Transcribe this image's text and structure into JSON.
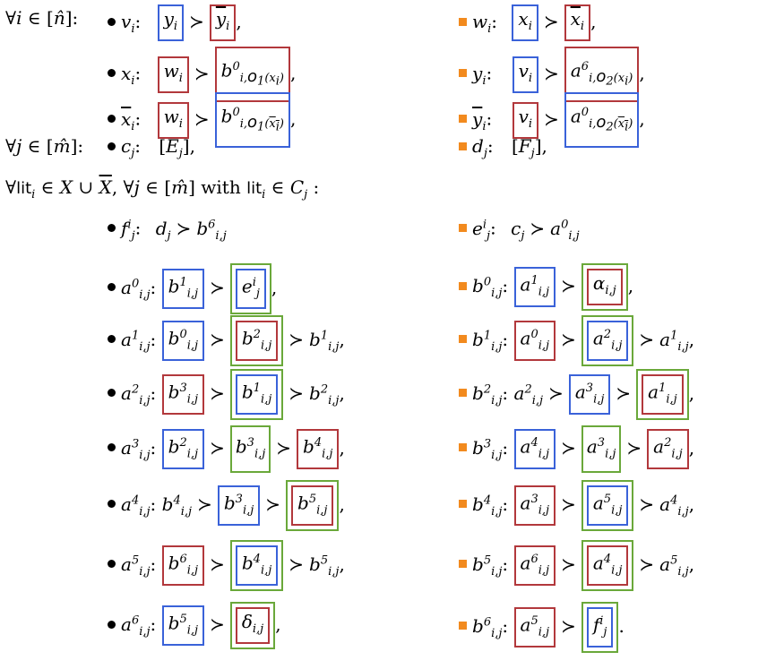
{
  "header_rows": [
    {
      "q": "∀i ∈ [n̂]:",
      "left": {
        "v": "v_i",
        "a": "y_i",
        "b": "ȳ_i"
      },
      "right": {
        "v": "w_i",
        "a": "x_i",
        "b": "x̄_i"
      }
    },
    {
      "left": {
        "v": "x_i",
        "a": "w_i",
        "b": "b^0_{i,o1(x_i)}"
      },
      "right": {
        "v": "y_i",
        "a": "v_i",
        "b": "a^6_{i,o2(x_i)}"
      }
    },
    {
      "left": {
        "v": "x̄_i",
        "a": "w_i",
        "b": "b^0_{i,o1(x̄_i)}"
      },
      "right": {
        "v": "ȳ_i",
        "a": "v_i",
        "b": "a^0_{i,o2(x̄_i)}"
      }
    },
    {
      "q": "∀j ∈ [m̂]:",
      "left": {
        "v": "c_j",
        "a": "[E_j],"
      },
      "right": {
        "v": "d_j",
        "a": "[F_j],"
      }
    }
  ],
  "quantifier_line": "∀lit_i ∈ X ∪ X̄, ∀j ∈ [m̂] with lit_i ∈ C_j :",
  "rows": [
    {
      "left": "f^i_j: d_j ≻ b^6_{i,j}",
      "right": "e^i_j: c_j ≻ a^0_{i,j}"
    },
    {
      "left": "a^0_{i,j}: b^1_{i,j} ≻ e^i_j,",
      "right": "b^0_{i,j}: a^1_{i,j} ≻ α_{i,j},"
    },
    {
      "left": "a^1_{i,j}: b^0_{i,j} ≻ b^2_{i,j} ≻ b^1_{i,j},",
      "right": "b^1_{i,j}: a^0_{i,j} ≻ a^2_{i,j} ≻ a^1_{i,j},"
    },
    {
      "left": "a^2_{i,j}: b^3_{i,j} ≻ b^1_{i,j} ≻ b^2_{i,j},",
      "right": "b^2_{i,j}: a^2_{i,j} ≻ a^3_{i,j} ≻ a^1_{i,j},"
    },
    {
      "left": "a^3_{i,j}: b^2_{i,j} ≻ b^3_{i,j} ≻ b^4_{i,j},",
      "right": "b^3_{i,j}: a^4_{i,j} ≻ a^3_{i,j} ≻ a^2_{i,j},"
    },
    {
      "left": "a^4_{i,j}: b^4_{i,j} ≻ b^3_{i,j} ≻ b^5_{i,j},",
      "right": "b^4_{i,j}: a^3_{i,j} ≻ a^5_{i,j} ≻ a^4_{i,j},"
    },
    {
      "left": "a^5_{i,j}: b^6_{i,j} ≻ b^4_{i,j} ≻ b^5_{i,j},",
      "right": "b^5_{i,j}: a^6_{i,j} ≻ a^4_{i,j} ≻ a^5_{i,j},"
    },
    {
      "left": "a^6_{i,j}: b^5_{i,j} ≻ δ_{i,j},",
      "right": "b^6_{i,j}: a^5_{i,j} ≻ f^i_j."
    }
  ],
  "colors": {
    "blue_box": "#3a62d9",
    "red_box": "#b2383c",
    "green_box": "#6aa83a",
    "orange_bullet": "#f28a1e"
  }
}
